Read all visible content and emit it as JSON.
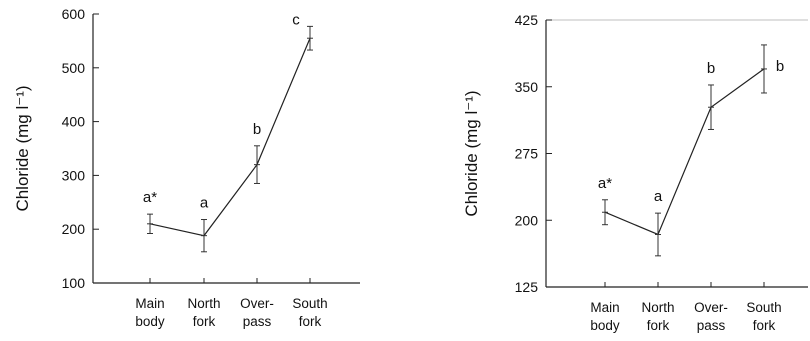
{
  "chart_data": [
    {
      "type": "line",
      "ylabel": "Chloride (mg l⁻¹)",
      "ylim": [
        100,
        600
      ],
      "yticks": [
        100,
        200,
        300,
        400,
        500,
        600
      ],
      "categories": [
        [
          "Main",
          "body"
        ],
        [
          "North",
          "fork"
        ],
        [
          "Over-",
          "pass"
        ],
        [
          "South",
          "fork"
        ]
      ],
      "values": [
        210,
        188,
        320,
        555
      ],
      "error": [
        18,
        30,
        35,
        22
      ],
      "annotations": [
        "a*",
        "a",
        "b",
        "c"
      ],
      "grid": false
    },
    {
      "type": "line",
      "ylabel": "Chloride (mg l⁻¹)",
      "ylim": [
        125,
        425
      ],
      "yticks": [
        125,
        200,
        275,
        350,
        425
      ],
      "categories": [
        [
          "Main",
          "body"
        ],
        [
          "North",
          "fork"
        ],
        [
          "Over-",
          "pass"
        ],
        [
          "South",
          "fork"
        ]
      ],
      "values": [
        209,
        184,
        327,
        370
      ],
      "error": [
        14,
        24,
        25,
        27
      ],
      "annotations": [
        "a*",
        "a",
        "b",
        "b"
      ],
      "grid": false
    }
  ]
}
